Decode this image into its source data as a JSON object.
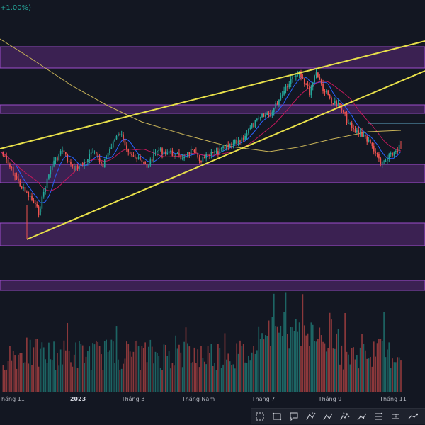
{
  "header": {
    "change_text": "+1.00%)"
  },
  "x_axis": {
    "ticks": [
      {
        "label": "Tháng 11",
        "bold": false
      },
      {
        "label": "2023",
        "bold": true
      },
      {
        "label": "Tháng 3",
        "bold": false
      },
      {
        "label": "Tháng Năm",
        "bold": false
      },
      {
        "label": "Tháng 7",
        "bold": false
      },
      {
        "label": "Tháng 9",
        "bold": false
      },
      {
        "label": "Tháng 11",
        "bold": false
      }
    ]
  },
  "toolbar": {
    "tools": [
      {
        "name": "select-rect-icon"
      },
      {
        "name": "rectangle-icon"
      },
      {
        "name": "callout-icon"
      },
      {
        "name": "fib-icon"
      },
      {
        "name": "pattern-icon"
      },
      {
        "name": "elliott-wave-icon"
      },
      {
        "name": "path-icon"
      },
      {
        "name": "long-position-icon"
      },
      {
        "name": "projection-icon"
      },
      {
        "name": "forecast-icon"
      }
    ]
  },
  "colors": {
    "background": "#131722",
    "zone_fill": "#5c2a7a",
    "zone_border": "#9c4dcc",
    "trendline": "#e8e04a",
    "ma_short": "#2962ff",
    "ma_mid": "#c2185b",
    "ma_long": "#c9b458",
    "up": "#26a69a",
    "down": "#ef5350",
    "hline": "#5fa8c8"
  },
  "chart_data": {
    "type": "candlestick",
    "zones": 5,
    "trendlines": 2,
    "moving_averages": 3,
    "volume": true
  }
}
